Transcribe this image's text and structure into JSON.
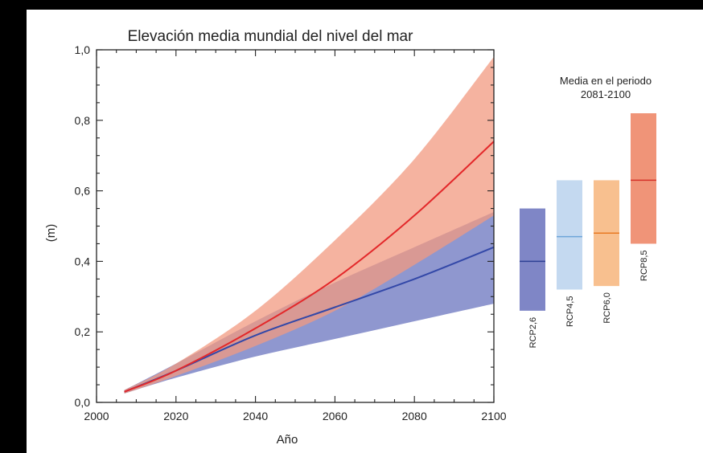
{
  "chart_data": {
    "type": "line",
    "title": "Elevación media mundial del nivel del mar",
    "xlabel": "Año",
    "ylabel": "(m)",
    "xlim": [
      2000,
      2100
    ],
    "ylim": [
      0.0,
      1.0
    ],
    "x_ticks": [
      2000,
      2020,
      2040,
      2060,
      2080,
      2100
    ],
    "x_tick_labels": [
      "2000",
      "2020",
      "2040",
      "2060",
      "2080",
      "2100"
    ],
    "y_ticks": [
      0.0,
      0.2,
      0.4,
      0.6,
      0.8,
      1.0
    ],
    "y_tick_labels": [
      "0,0",
      "0,2",
      "0,4",
      "0,6",
      "0,8",
      "1,0"
    ],
    "grid": false,
    "x": [
      2007,
      2020,
      2040,
      2060,
      2080,
      2100
    ],
    "series": [
      {
        "name": "RCP2,6",
        "color": "#3348a8",
        "band_color": "#8f97cf",
        "mean": [
          0.03,
          0.09,
          0.19,
          0.27,
          0.35,
          0.44
        ],
        "lower": [
          0.025,
          0.07,
          0.13,
          0.18,
          0.23,
          0.28
        ],
        "upper": [
          0.035,
          0.11,
          0.23,
          0.34,
          0.44,
          0.54
        ]
      },
      {
        "name": "RCP8,5",
        "color": "#e3282a",
        "band_color": "#f29a80",
        "mean": [
          0.03,
          0.09,
          0.21,
          0.35,
          0.53,
          0.74
        ],
        "lower": [
          0.025,
          0.075,
          0.16,
          0.26,
          0.39,
          0.53
        ],
        "upper": [
          0.035,
          0.11,
          0.26,
          0.46,
          0.69,
          0.98
        ]
      }
    ],
    "side_panel": {
      "title_line1": "Media en el periodo",
      "title_line2": "2081-2100",
      "bars": [
        {
          "label": "RCP2,6",
          "low": 0.26,
          "mean": 0.4,
          "high": 0.55,
          "fill": "#7f86c6",
          "line": "#2f4195"
        },
        {
          "label": "RCP4,5",
          "low": 0.32,
          "mean": 0.47,
          "high": 0.63,
          "fill": "#c4d9f0",
          "line": "#6da5d9"
        },
        {
          "label": "RCP6,0",
          "low": 0.33,
          "mean": 0.48,
          "high": 0.63,
          "fill": "#f8c08f",
          "line": "#e87a23"
        },
        {
          "label": "RCP8,5",
          "low": 0.45,
          "mean": 0.63,
          "high": 0.82,
          "fill": "#f09478",
          "line": "#d6332a"
        }
      ]
    }
  }
}
